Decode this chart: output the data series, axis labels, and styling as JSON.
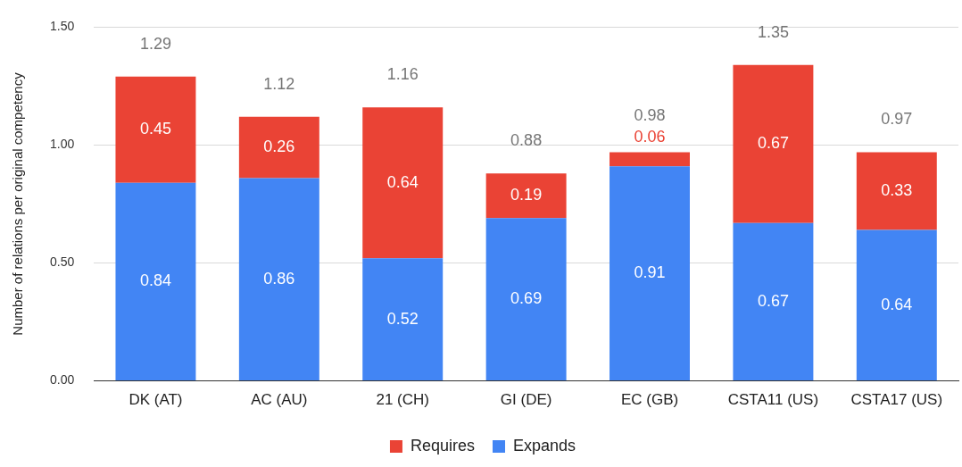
{
  "chart_data": {
    "type": "bar",
    "ylabel": "Number of relations per original competency",
    "categories": [
      "DK (AT)",
      "AC (AU)",
      "21 (CH)",
      "GI (DE)",
      "EC (GB)",
      "CSTA11 (US)",
      "CSTA17 (US)"
    ],
    "series": [
      {
        "name": "Expands",
        "color": "#4285f4",
        "values": [
          0.84,
          0.86,
          0.52,
          0.69,
          0.91,
          0.67,
          0.64
        ]
      },
      {
        "name": "Requires",
        "color": "#ea4335",
        "values": [
          0.45,
          0.26,
          0.64,
          0.19,
          0.06,
          0.67,
          0.33
        ]
      }
    ],
    "stacked": true,
    "ylim": [
      0,
      1.5
    ],
    "yticks": [
      {
        "value": 0,
        "label": "0.00"
      },
      {
        "value": 0.5,
        "label": "0.50"
      },
      {
        "value": 1,
        "label": "1.00"
      },
      {
        "value": 1.5,
        "label": "1.50"
      }
    ],
    "grid": "y",
    "legend": "bottom",
    "data_labels": true,
    "totals": [
      "1.29",
      "1.12",
      "1.16",
      "0.88",
      "0.98",
      "1.35",
      "0.97"
    ]
  }
}
